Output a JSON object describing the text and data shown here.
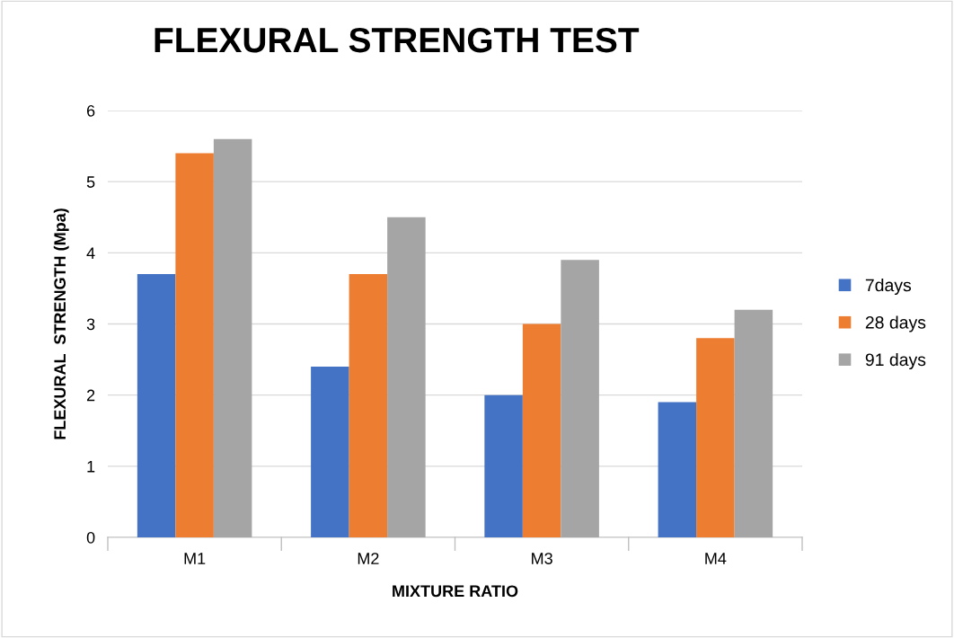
{
  "chart_data": {
    "type": "bar",
    "title": "FLEXURAL STRENGTH TEST",
    "xlabel": "MIXTURE RATIO",
    "ylabel": "FLEXURAL  STRENGTH (Mpa)",
    "categories": [
      "M1",
      "M2",
      "M3",
      "M4"
    ],
    "series": [
      {
        "name": "7days",
        "color": "#4472c4",
        "values": [
          3.7,
          2.4,
          2.0,
          1.9
        ]
      },
      {
        "name": "28 days",
        "color": "#ed7d31",
        "values": [
          5.4,
          3.7,
          3.0,
          2.8
        ]
      },
      {
        "name": "91 days",
        "color": "#a5a5a5",
        "values": [
          5.6,
          4.5,
          3.9,
          3.2
        ]
      }
    ],
    "ylim": [
      0,
      6
    ],
    "yticks": [
      0,
      1,
      2,
      3,
      4,
      5,
      6
    ],
    "grid": "y",
    "legend": "right"
  }
}
